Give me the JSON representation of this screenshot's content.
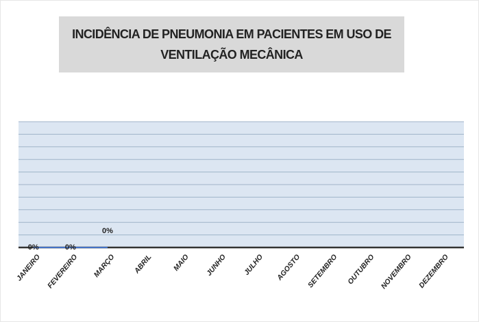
{
  "chart_data": {
    "type": "line",
    "title": "INCIDÊNCIA DE PNEUMONIA EM PACIENTES EM USO DE VENTILAÇÃO MECÂNICA",
    "categories": [
      "JANEIRO",
      "FEVEREIRO",
      "MARÇO",
      "ABRIL",
      "MAIO",
      "JUNHO",
      "JULHO",
      "AGOSTO",
      "SETEMBRO",
      "OUTUBRO",
      "NOVEMBRO",
      "DEZEMBRO"
    ],
    "series": [
      {
        "color": "#4472c4",
        "values": [
          0,
          0,
          0,
          null,
          null,
          null,
          null,
          null,
          null,
          null,
          null,
          null
        ],
        "value_labels": [
          "0%",
          "0%",
          "0%",
          null,
          null,
          null,
          null,
          null,
          null,
          null,
          null,
          null
        ]
      }
    ],
    "ylim": [
      0,
      100
    ],
    "yticks": [
      0,
      10,
      20,
      30,
      40,
      50,
      60,
      70,
      80,
      90,
      100
    ],
    "grid": true
  }
}
